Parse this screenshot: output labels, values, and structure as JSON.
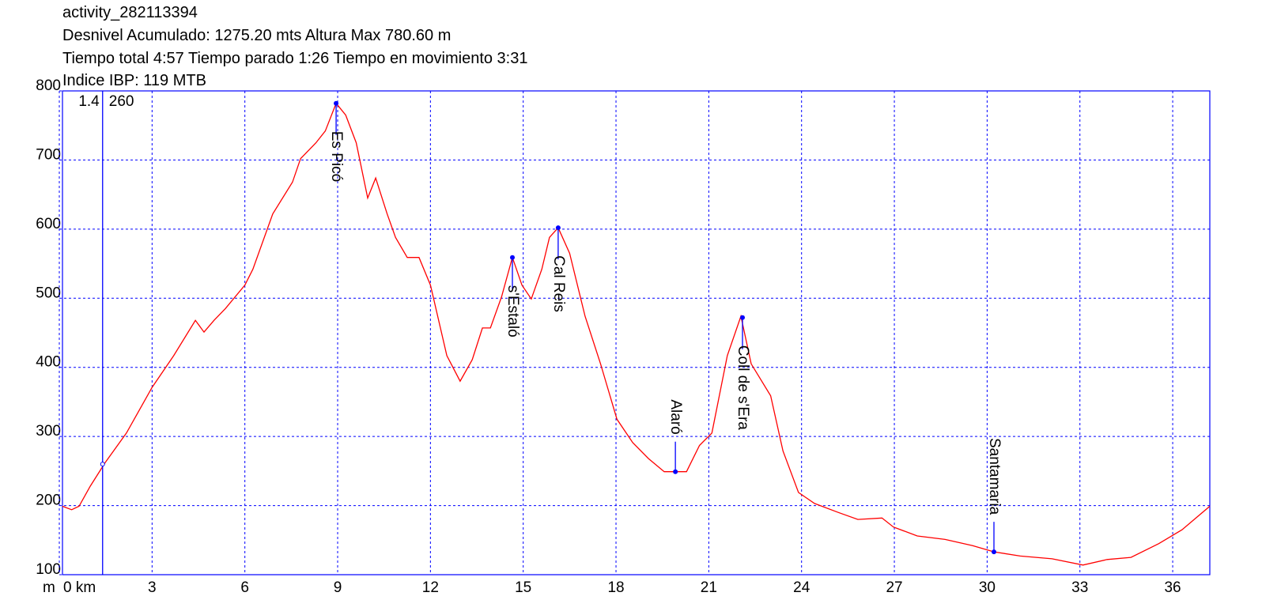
{
  "chart_data": {
    "type": "line",
    "title": "activity_282113394",
    "subtitles": [
      "Desnivel Acumulado: 1275.20 mts  Altura Max 780.60 m",
      "Tiempo total 4:57 Tiempo parado 1:26 Tiempo en movimiento 3:31",
      "Indice IBP: 119 MTB"
    ],
    "y_unit": "m",
    "xlim": [
      0,
      37.2
    ],
    "ylim": [
      100,
      800
    ],
    "xticks": [
      {
        "value": 0,
        "label": "0 km"
      },
      3,
      6,
      9,
      12,
      15,
      18,
      21,
      24,
      27,
      30,
      33,
      36
    ],
    "yticks": [
      100,
      200,
      300,
      400,
      500,
      600,
      700,
      800
    ],
    "grid": true,
    "grid_color": "#0000ff",
    "axis_color": "#0000ff",
    "series": [
      {
        "color": "#ff0000",
        "x": [
          0.1,
          0.4,
          0.64,
          1.0,
          1.48,
          2.17,
          3.0,
          3.7,
          4.4,
          4.68,
          5.0,
          5.37,
          6.0,
          6.26,
          6.9,
          7.54,
          7.8,
          8.3,
          8.6,
          8.95,
          9.26,
          9.6,
          9.97,
          10.23,
          10.6,
          10.87,
          11.25,
          11.63,
          12.0,
          12.53,
          12.96,
          13.35,
          13.68,
          13.94,
          14.3,
          14.65,
          14.96,
          15.26,
          15.6,
          15.85,
          16.13,
          16.5,
          17.0,
          17.5,
          18.03,
          18.54,
          19.05,
          19.56,
          19.92,
          20.28,
          20.7,
          21.1,
          21.6,
          22.04,
          22.37,
          23.0,
          23.4,
          23.9,
          24.42,
          25.19,
          25.82,
          26.6,
          26.97,
          27.74,
          28.64,
          29.53,
          30.22,
          31.07,
          32.1,
          33.1,
          33.88,
          34.65,
          35.55,
          36.3,
          37.2
        ],
        "values": [
          199,
          194,
          199,
          228,
          262,
          305,
          371,
          417,
          468,
          451,
          468,
          485,
          519,
          542,
          622,
          668,
          702,
          725,
          742,
          782,
          765,
          725,
          645,
          674,
          622,
          588,
          559,
          559,
          519,
          417,
          380,
          411,
          457,
          457,
          502,
          559,
          519,
          499,
          542,
          588,
          602,
          565,
          474,
          405,
          325,
          291,
          268,
          249,
          249,
          249,
          287,
          305,
          417,
          474,
          405,
          359,
          279,
          219,
          203,
          190,
          180,
          182,
          169,
          156,
          151,
          142,
          133,
          127,
          123,
          114,
          122,
          125,
          145,
          165,
          199
        ]
      }
    ],
    "waypoints": [
      {
        "label": "Es Picó",
        "x": 8.95,
        "y": 782
      },
      {
        "label": "s'Estaló",
        "x": 14.65,
        "y": 559
      },
      {
        "label": "Cal Reis",
        "x": 16.13,
        "y": 602
      },
      {
        "label": "Alaró",
        "x": 19.92,
        "y": 249
      },
      {
        "label": "Coll de s'Era",
        "x": 22.09,
        "y": 472
      },
      {
        "label": "Santamaria",
        "x": 30.22,
        "y": 133
      }
    ],
    "waypoint_color": "#0000ff",
    "cursor": {
      "x": 1.4,
      "y": 260
    }
  }
}
